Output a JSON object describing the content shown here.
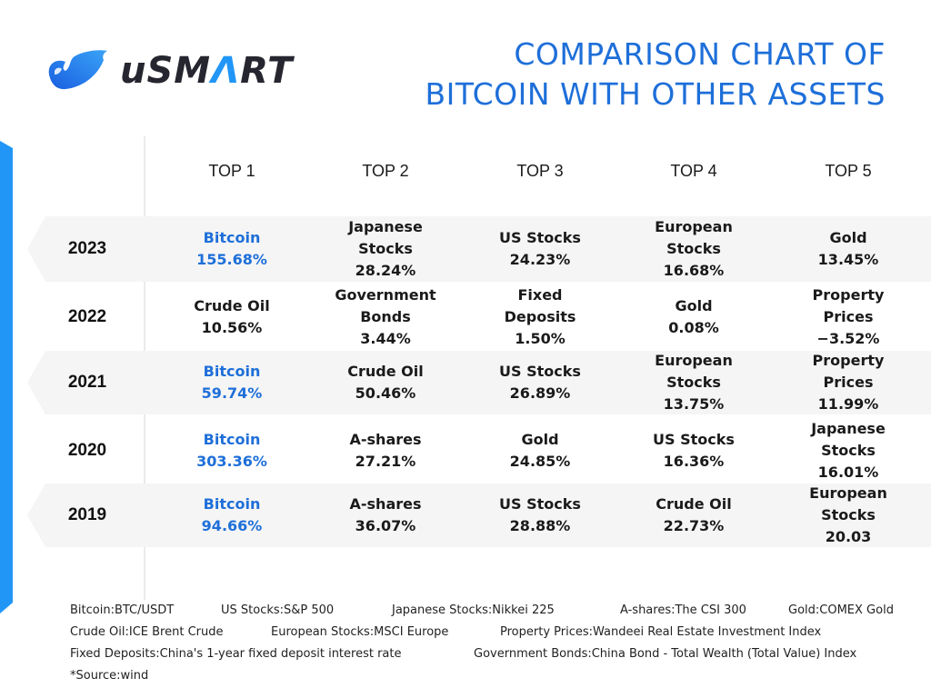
{
  "brand": {
    "name_prefix": "uSM",
    "name_accent": "Λ",
    "name_suffix": "RT",
    "logo_icon": "dolphin-logo-icon",
    "colors": {
      "accent": "#2196f7",
      "title": "#1e6fd9",
      "highlight": "#1e6fd9",
      "row_shade": "#f5f5f5"
    }
  },
  "title": {
    "line1": "COMPARISON CHART OF",
    "line2": "BITCOIN WITH OTHER ASSETS"
  },
  "table": {
    "headers": [
      "TOP 1",
      "TOP 2",
      "TOP 3",
      "TOP 4",
      "TOP 5"
    ],
    "rows": [
      {
        "year": "2023",
        "cells": [
          {
            "name": "Bitcoin",
            "value": "155.68%",
            "highlight": true
          },
          {
            "name": "Japanese Stocks",
            "value": "28.24%"
          },
          {
            "name": "US Stocks",
            "value": "24.23%"
          },
          {
            "name": "European Stocks",
            "value": "16.68%"
          },
          {
            "name": "Gold",
            "value": "13.45%"
          }
        ]
      },
      {
        "year": "2022",
        "cells": [
          {
            "name": "Crude Oil",
            "value": "10.56%"
          },
          {
            "name": "Government Bonds",
            "value": "3.44%"
          },
          {
            "name": "Fixed Deposits",
            "value": "1.50%"
          },
          {
            "name": "Gold",
            "value": "0.08%"
          },
          {
            "name": "Property Prices",
            "value": "−3.52%"
          }
        ]
      },
      {
        "year": "2021",
        "cells": [
          {
            "name": "Bitcoin",
            "value": "59.74%",
            "highlight": true
          },
          {
            "name": "Crude Oil",
            "value": "50.46%"
          },
          {
            "name": "US Stocks",
            "value": "26.89%"
          },
          {
            "name": "European Stocks",
            "value": "13.75%"
          },
          {
            "name": "Property Prices",
            "value": "11.99%"
          }
        ]
      },
      {
        "year": "2020",
        "cells": [
          {
            "name": "Bitcoin",
            "value": "303.36%",
            "highlight": true
          },
          {
            "name": "A-shares",
            "value": "27.21%"
          },
          {
            "name": "Gold",
            "value": "24.85%"
          },
          {
            "name": "US Stocks",
            "value": "16.36%"
          },
          {
            "name": "Japanese Stocks",
            "value": "16.01%"
          }
        ]
      },
      {
        "year": "2019",
        "cells": [
          {
            "name": "Bitcoin",
            "value": "94.66%",
            "highlight": true
          },
          {
            "name": "A-shares",
            "value": "36.07%"
          },
          {
            "name": "US Stocks",
            "value": "28.88%"
          },
          {
            "name": "Crude Oil",
            "value": "22.73%"
          },
          {
            "name": "European Stocks",
            "value": "20.03"
          }
        ]
      }
    ]
  },
  "footnotes": {
    "line1": [
      "Bitcoin:BTC/USDT",
      "US Stocks:S&P 500",
      "Japanese Stocks:Nikkei 225",
      "A-shares:The CSI 300",
      "Gold:COMEX Gold"
    ],
    "line2": [
      "Crude Oil:ICE Brent Crude",
      "European Stocks:MSCI Europe",
      "Property Prices:Wandeei Real Estate Investment Index"
    ],
    "line3": [
      "Fixed Deposits:China's 1-year fixed deposit interest rate",
      "Government Bonds:China Bond - Total Wealth (Total Value) Index"
    ],
    "source": "*Source:wind"
  }
}
